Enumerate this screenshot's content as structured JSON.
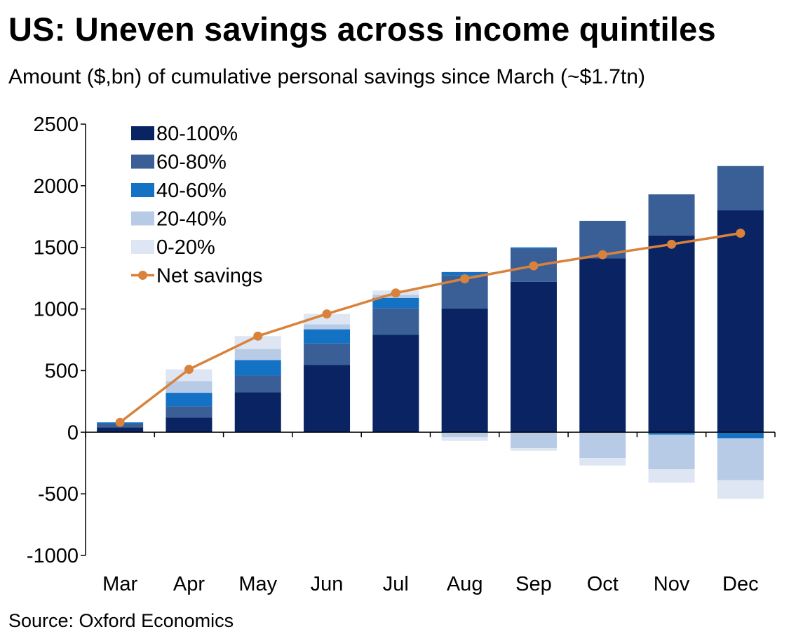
{
  "title": "US: Uneven savings across income quintiles",
  "subtitle": "Amount ($,bn) of cumulative personal savings since March (~$1.7tn)",
  "source": "Source: Oxford Economics",
  "colors": {
    "q80_100": "#0a2463",
    "q60_80": "#3a5f97",
    "q40_60": "#1472c4",
    "q20_40": "#b8cbe6",
    "q0_20": "#dde6f2",
    "net": "#d9823b"
  },
  "chart_data": {
    "type": "bar",
    "stacked": true,
    "categories": [
      "Mar",
      "Apr",
      "May",
      "Jun",
      "Jul",
      "Aug",
      "Sep",
      "Oct",
      "Nov",
      "Dec"
    ],
    "ylim": [
      -1000,
      2500
    ],
    "yticks": [
      "2500",
      "2000",
      "1500",
      "1000",
      "500",
      "0",
      "-500",
      "-1000"
    ],
    "ytick_values": [
      2500,
      2000,
      1500,
      1000,
      500,
      0,
      -500,
      -1000
    ],
    "legend_position": "top-left",
    "series": [
      {
        "name": "80-100%",
        "color_key": "q80_100",
        "values": [
          40,
          120,
          325,
          545,
          790,
          1005,
          1220,
          1410,
          1595,
          1800
        ]
      },
      {
        "name": "60-80%",
        "color_key": "q60_80",
        "values": [
          30,
          90,
          135,
          175,
          215,
          270,
          270,
          305,
          335,
          360
        ]
      },
      {
        "name": "40-60%",
        "color_key": "q40_60",
        "values": [
          10,
          110,
          125,
          115,
          85,
          25,
          10,
          0,
          -20,
          -50
        ]
      },
      {
        "name": "20-40%",
        "color_key": "q20_40",
        "values": [
          0,
          95,
          90,
          40,
          25,
          -40,
          -130,
          -210,
          -280,
          -340
        ]
      },
      {
        "name": "0-20%",
        "color_key": "q0_20",
        "values": [
          0,
          95,
          105,
          85,
          35,
          -30,
          -20,
          -60,
          -110,
          -150
        ]
      }
    ],
    "line": {
      "name": "Net savings",
      "color_key": "net",
      "values": [
        80,
        510,
        780,
        960,
        1130,
        1245,
        1350,
        1440,
        1525,
        1615
      ]
    }
  }
}
